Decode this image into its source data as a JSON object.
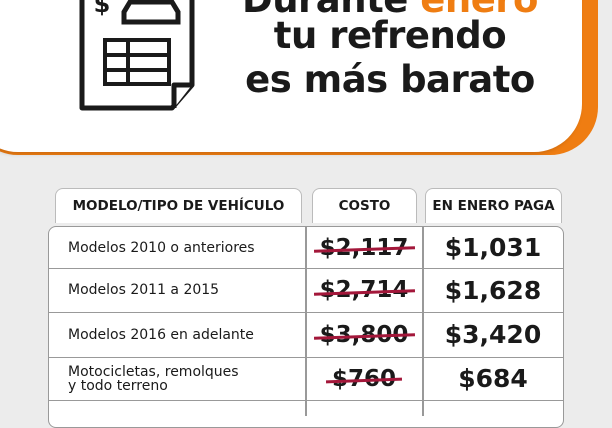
{
  "headline": {
    "line1_a": "Durante",
    "line1_b": "enero",
    "line2": "tu refrendo",
    "line3": "es más barato"
  },
  "table": {
    "columns": [
      "MODELO/TIPO DE VEHÍCULO",
      "COSTO",
      "EN ENERO PAGA"
    ],
    "rows": [
      [
        "Modelos 2010 o anteriores",
        "$2,117",
        "$1,031"
      ],
      [
        "Modelos 2011 a 2015",
        "$2,714",
        "$1,628"
      ],
      [
        "Modelos 2016 en adelante",
        "$3,800",
        "$3,420"
      ],
      [
        "Motocicletas, remolques\ny todo terreno",
        "$760",
        "$684"
      ]
    ]
  }
}
